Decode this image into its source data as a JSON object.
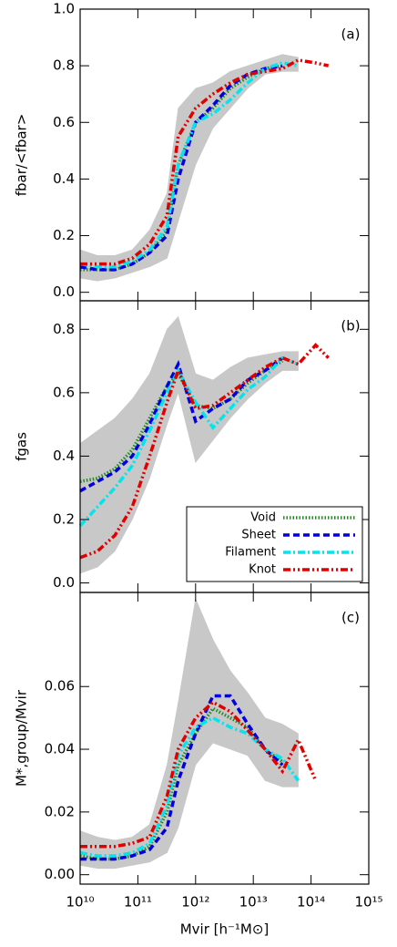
{
  "chart_data": [
    {
      "type": "line",
      "panel_label": "(a)",
      "ylabel": "fbar/<fbar>",
      "xscale": "log",
      "xlim": [
        10000000000.0,
        1000000000000000.0
      ],
      "ylim": [
        -0.03,
        1.0
      ],
      "yticks": [
        {
          "value": 0,
          "label": "0.0"
        },
        0.2,
        0.4,
        0.6,
        0.8,
        {
          "value": 1,
          "label": "1.0"
        }
      ],
      "x": [
        10000000000.0,
        20000000000.0,
        40000000000.0,
        80000000000.0,
        160000000000.0,
        320000000000.0,
        500000000000.0,
        1000000000000.0,
        2000000000000.0,
        4000000000000.0,
        8000000000000.0,
        16000000000000.0,
        32000000000000.0,
        60000000000000.0,
        120000000000000.0,
        200000000000000.0
      ],
      "band": {
        "color": "#c8c8c8",
        "x": [
          10000000000.0,
          20000000000.0,
          40000000000.0,
          80000000000.0,
          160000000000.0,
          320000000000.0,
          500000000000.0,
          1000000000000.0,
          2000000000000.0,
          4000000000000.0,
          8000000000000.0,
          16000000000000.0,
          32000000000000.0,
          60000000000000.0
        ],
        "lower": [
          0.05,
          0.04,
          0.05,
          0.07,
          0.09,
          0.12,
          0.25,
          0.45,
          0.58,
          0.65,
          0.72,
          0.77,
          0.78,
          0.78
        ],
        "upper": [
          0.15,
          0.13,
          0.13,
          0.15,
          0.22,
          0.35,
          0.65,
          0.72,
          0.74,
          0.78,
          0.8,
          0.82,
          0.84,
          0.83
        ]
      },
      "series": [
        {
          "name": "Void",
          "color": "#228b22",
          "linestyle": "dotted",
          "values": [
            0.08,
            0.08,
            0.08,
            0.1,
            0.14,
            0.22,
            0.45,
            0.6,
            0.65,
            0.72,
            0.76,
            0.79,
            0.8,
            null,
            null,
            null
          ]
        },
        {
          "name": "Sheet",
          "color": "#0000e0",
          "linestyle": "dashed",
          "values": [
            0.09,
            0.08,
            0.08,
            0.1,
            0.14,
            0.2,
            0.4,
            0.6,
            0.66,
            0.73,
            0.77,
            0.79,
            0.8,
            null,
            null,
            null
          ]
        },
        {
          "name": "Filament",
          "color": "#00e5ee",
          "linestyle": "dashdot",
          "values": [
            0.1,
            0.09,
            0.09,
            0.11,
            0.15,
            0.23,
            0.45,
            0.6,
            0.63,
            0.68,
            0.74,
            0.79,
            0.81,
            0.8,
            null,
            null
          ]
        },
        {
          "name": "Knot",
          "color": "#e00000",
          "linestyle": "dashdotdot",
          "values": [
            0.1,
            0.1,
            0.1,
            0.12,
            0.17,
            0.27,
            0.55,
            0.65,
            0.7,
            0.74,
            0.77,
            0.78,
            0.79,
            0.82,
            0.81,
            0.8
          ]
        }
      ]
    },
    {
      "type": "line",
      "panel_label": "(b)",
      "ylabel": "fgas",
      "xscale": "log",
      "xlim": [
        10000000000.0,
        1000000000000000.0
      ],
      "ylim": [
        -0.03,
        0.89
      ],
      "yticks": [
        {
          "value": 0,
          "label": "0.0"
        },
        0.2,
        0.4,
        0.6,
        0.8
      ],
      "legend": "lower right",
      "x": [
        10000000000.0,
        20000000000.0,
        40000000000.0,
        80000000000.0,
        160000000000.0,
        320000000000.0,
        500000000000.0,
        1000000000000.0,
        2000000000000.0,
        4000000000000.0,
        8000000000000.0,
        16000000000000.0,
        32000000000000.0,
        60000000000000.0,
        120000000000000.0,
        200000000000000.0
      ],
      "band": {
        "color": "#c8c8c8",
        "x": [
          10000000000.0,
          20000000000.0,
          40000000000.0,
          80000000000.0,
          160000000000.0,
          320000000000.0,
          500000000000.0,
          1000000000000.0,
          2000000000000.0,
          4000000000000.0,
          8000000000000.0,
          16000000000000.0,
          32000000000000.0,
          60000000000000.0
        ],
        "lower": [
          0.03,
          0.05,
          0.1,
          0.2,
          0.33,
          0.5,
          0.6,
          0.38,
          0.45,
          0.52,
          0.58,
          0.63,
          0.67,
          0.67
        ],
        "upper": [
          0.44,
          0.48,
          0.52,
          0.58,
          0.66,
          0.8,
          0.84,
          0.66,
          0.64,
          0.68,
          0.71,
          0.72,
          0.73,
          0.73
        ]
      },
      "series": [
        {
          "name": "Void",
          "color": "#228b22",
          "linestyle": "dotted",
          "values": [
            0.32,
            0.33,
            0.36,
            0.42,
            0.52,
            0.62,
            0.66,
            0.56,
            0.55,
            0.58,
            0.63,
            0.67,
            0.7,
            null,
            null,
            null
          ]
        },
        {
          "name": "Sheet",
          "color": "#0000e0",
          "linestyle": "dashed",
          "values": [
            0.29,
            0.32,
            0.35,
            0.4,
            0.5,
            0.62,
            0.69,
            0.51,
            0.55,
            0.58,
            0.64,
            0.67,
            0.71,
            null,
            null,
            null
          ]
        },
        {
          "name": "Filament",
          "color": "#00e5ee",
          "linestyle": "dashdot",
          "values": [
            0.18,
            0.24,
            0.3,
            0.37,
            0.48,
            0.6,
            0.67,
            0.57,
            0.49,
            0.55,
            0.61,
            0.65,
            0.71,
            0.69,
            null,
            null
          ]
        },
        {
          "name": "Knot",
          "color": "#e00000",
          "linestyle": "dashdotdot",
          "values": [
            0.08,
            0.1,
            0.15,
            0.24,
            0.4,
            0.57,
            0.67,
            0.55,
            0.56,
            0.6,
            0.64,
            0.68,
            0.71,
            0.69,
            0.75,
            0.71
          ]
        }
      ]
    },
    {
      "type": "line",
      "panel_label": "(c)",
      "ylabel": "M*,group/Mvir",
      "xlabel": "Mvir [h⁻¹M⊙]",
      "xscale": "log",
      "xlim": [
        10000000000.0,
        1000000000000000.0
      ],
      "xticks": [
        {
          "value": 10000000000.0,
          "label": "10¹⁰"
        },
        {
          "value": 100000000000.0,
          "label": "10¹¹"
        },
        {
          "value": 1000000000000.0,
          "label": "10¹²"
        },
        {
          "value": 10000000000000.0,
          "label": "10¹³"
        },
        {
          "value": 100000000000000.0,
          "label": "10¹⁴"
        },
        {
          "value": 1000000000000000.0,
          "label": "10¹⁵"
        }
      ],
      "ylim": [
        -0.003,
        0.09
      ],
      "yticks": [
        {
          "value": 0,
          "label": "0.00"
        },
        {
          "value": 0.02,
          "label": "0.02"
        },
        {
          "value": 0.04,
          "label": "0.04"
        },
        {
          "value": 0.06,
          "label": "0.06"
        }
      ],
      "x": [
        10000000000.0,
        20000000000.0,
        40000000000.0,
        80000000000.0,
        160000000000.0,
        320000000000.0,
        500000000000.0,
        1000000000000.0,
        2000000000000.0,
        4000000000000.0,
        8000000000000.0,
        16000000000000.0,
        32000000000000.0,
        60000000000000.0,
        120000000000000.0,
        200000000000000.0
      ],
      "band": {
        "color": "#c8c8c8",
        "x": [
          10000000000.0,
          20000000000.0,
          40000000000.0,
          80000000000.0,
          160000000000.0,
          320000000000.0,
          500000000000.0,
          1000000000000.0,
          2000000000000.0,
          4000000000000.0,
          8000000000000.0,
          16000000000000.0,
          32000000000000.0,
          60000000000000.0
        ],
        "lower": [
          0.003,
          0.002,
          0.002,
          0.003,
          0.004,
          0.007,
          0.015,
          0.035,
          0.042,
          0.04,
          0.038,
          0.03,
          0.028,
          0.028
        ],
        "upper": [
          0.014,
          0.012,
          0.011,
          0.012,
          0.016,
          0.035,
          0.055,
          0.088,
          0.075,
          0.065,
          0.058,
          0.05,
          0.048,
          0.045
        ]
      },
      "series": [
        {
          "name": "Void",
          "color": "#228b22",
          "linestyle": "dotted",
          "values": [
            0.006,
            0.005,
            0.005,
            0.006,
            0.009,
            0.02,
            0.035,
            0.045,
            0.053,
            0.05,
            0.047,
            0.04,
            0.036,
            null,
            null,
            null
          ]
        },
        {
          "name": "Sheet",
          "color": "#0000e0",
          "linestyle": "dashed",
          "values": [
            0.005,
            0.005,
            0.005,
            0.006,
            0.008,
            0.015,
            0.03,
            0.045,
            0.057,
            0.057,
            0.048,
            0.04,
            0.035,
            null,
            null,
            null
          ]
        },
        {
          "name": "Filament",
          "color": "#00e5ee",
          "linestyle": "dashdot",
          "values": [
            0.007,
            0.006,
            0.006,
            0.007,
            0.01,
            0.022,
            0.038,
            0.047,
            0.05,
            0.047,
            0.045,
            0.04,
            0.037,
            0.03,
            null,
            null
          ]
        },
        {
          "name": "Knot",
          "color": "#e00000",
          "linestyle": "dashdotdot",
          "values": [
            0.009,
            0.009,
            0.009,
            0.01,
            0.012,
            0.025,
            0.04,
            0.05,
            0.055,
            0.052,
            0.046,
            0.04,
            0.033,
            0.043,
            0.03,
            null
          ]
        }
      ]
    }
  ]
}
